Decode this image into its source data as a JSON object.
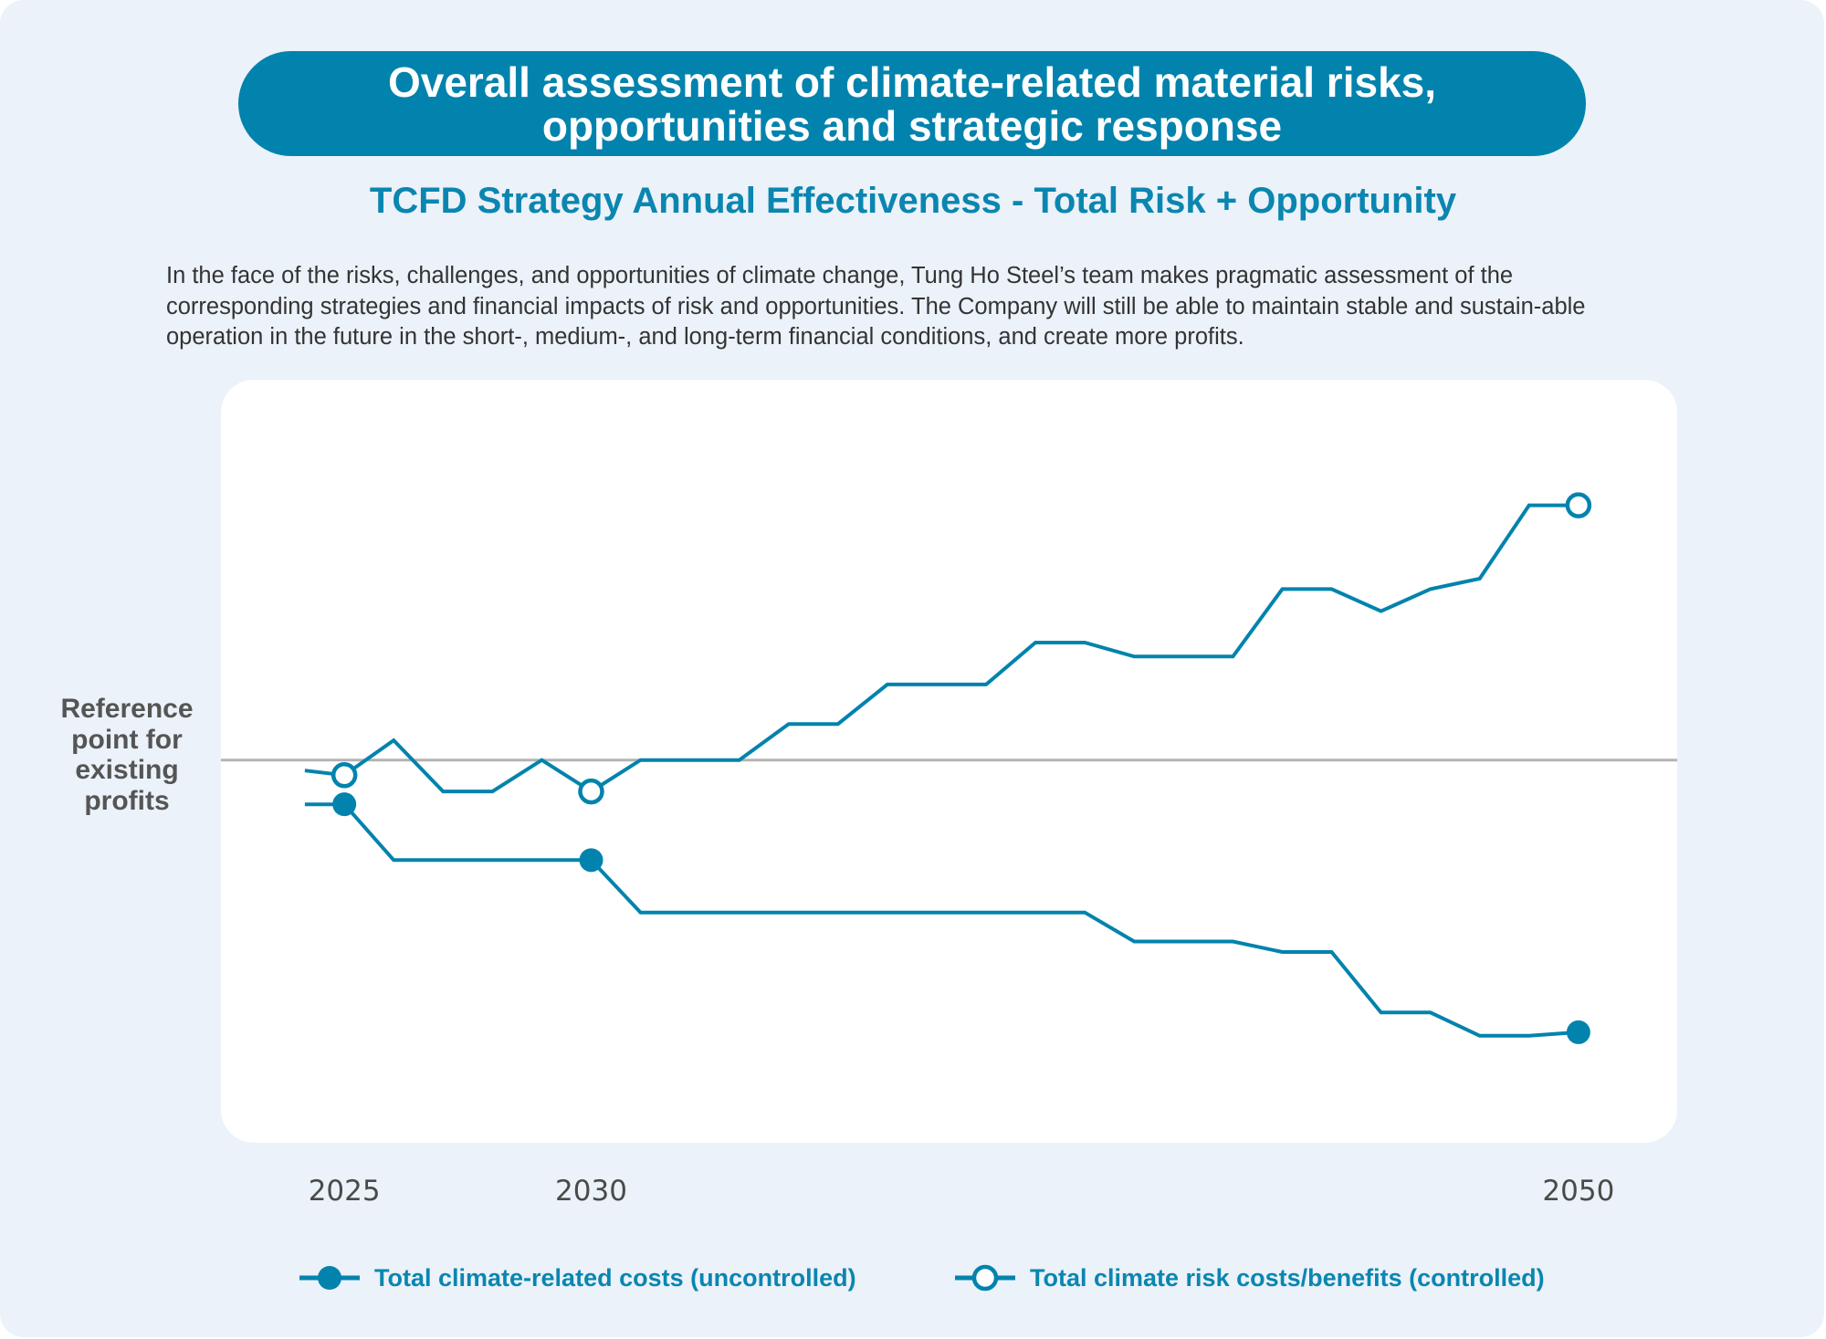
{
  "header": {
    "banner_title": "Overall assessment of climate-related material risks, opportunities and strategic response",
    "subtitle": "TCFD Strategy Annual Effectiveness - Total Risk + Opportunity"
  },
  "intro_text": "In the face of the risks, challenges, and opportunities of climate change, Tung Ho Steel’s team makes pragmatic assessment of the corresponding strategies and financial impacts of risk and opportunities. The Company will still be able to maintain stable and sustain-able operation in the future in the short-, medium-, and long-term financial conditions, and create more profits.",
  "colors": {
    "accent": "#0283ad",
    "text_accent": "#0a86b0",
    "reference_line": "#b3b3b3",
    "background": "#ebf2f9"
  },
  "chart_data": {
    "type": "line",
    "title": "TCFD Strategy Annual Effectiveness - Total Risk + Opportunity",
    "xlabel": "",
    "ylabel": "",
    "x_tick_labels": [
      "2025",
      "2030",
      "2050"
    ],
    "x_ticks": [
      2025,
      2030,
      2050
    ],
    "xlim": [
      2022.5,
      2052.0
    ],
    "ylim": [
      -32.9,
      32.7
    ],
    "grid": false,
    "y_axis_labeled": false,
    "reference_line": {
      "value": 0,
      "label": "Reference point for existing profits"
    },
    "legend_position": "bottom",
    "x": [
      2024.2,
      2025,
      2026,
      2027,
      2028,
      2029,
      2030,
      2031,
      2032,
      2033,
      2034,
      2035,
      2036,
      2037,
      2038,
      2039,
      2040,
      2041,
      2042,
      2043,
      2044,
      2045,
      2046,
      2047,
      2048,
      2049,
      2050
    ],
    "series": [
      {
        "name": "Total climate-related costs (uncontrolled)",
        "marker": "filled-circle",
        "marker_at": [
          2025,
          2030,
          2050
        ],
        "values": [
          -3.8,
          -3.8,
          -8.6,
          -8.6,
          -8.6,
          -8.6,
          -8.6,
          -13.1,
          -13.1,
          -13.1,
          -13.1,
          -13.1,
          -13.1,
          -13.1,
          -13.1,
          -13.1,
          -13.1,
          -15.6,
          -15.6,
          -15.6,
          -16.5,
          -16.5,
          -21.7,
          -21.7,
          -23.7,
          -23.7,
          -23.4
        ]
      },
      {
        "name": "Total climate risk costs/benefits (controlled)",
        "marker": "hollow-circle",
        "marker_at": [
          2025,
          2030,
          2050
        ],
        "values": [
          -0.9,
          -1.3,
          1.7,
          -2.7,
          -2.7,
          0,
          -2.7,
          0,
          0,
          0,
          3.1,
          3.1,
          6.5,
          6.5,
          6.5,
          10.1,
          10.1,
          8.9,
          8.9,
          8.9,
          14.7,
          14.7,
          12.8,
          14.7,
          15.6,
          21.9,
          21.9
        ]
      }
    ]
  }
}
